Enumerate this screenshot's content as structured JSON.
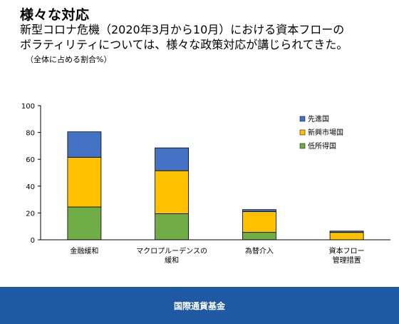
{
  "header": {
    "title": "様々な対応",
    "subtitle_line1": "新型コロナ危機（2020年3月から10月）における資本フローの",
    "subtitle_line2": "ボラティリティについては、様々な政策対応が講じられてきた。",
    "note": "（全体に占める割合%）"
  },
  "footer": {
    "label": "国際通貨基金",
    "color": "#1f59a3"
  },
  "chart_data": {
    "type": "bar",
    "stacked": true,
    "categories": [
      [
        "金融緩和"
      ],
      [
        "マクロプルーデンスの",
        "緩和"
      ],
      [
        "為替介入"
      ],
      [
        "資本フロー",
        "管理措置"
      ]
    ],
    "series": [
      {
        "name": "低所得国",
        "color": "#70ad47",
        "values": [
          24.5,
          19.5,
          5.5,
          0
        ]
      },
      {
        "name": "新興市場国",
        "color": "#ffc000",
        "values": [
          37,
          32,
          15.5,
          5.5
        ]
      },
      {
        "name": "先進国",
        "color": "#4472c4",
        "values": [
          19,
          17,
          1.5,
          1
        ]
      }
    ],
    "legend_order": [
      "先進国",
      "新興市場国",
      "低所得国"
    ],
    "legend_position": "top-right",
    "ylim": [
      0,
      100
    ],
    "yticks": [
      "0",
      "20",
      "40",
      "60",
      "80",
      "100"
    ],
    "grid": false
  }
}
